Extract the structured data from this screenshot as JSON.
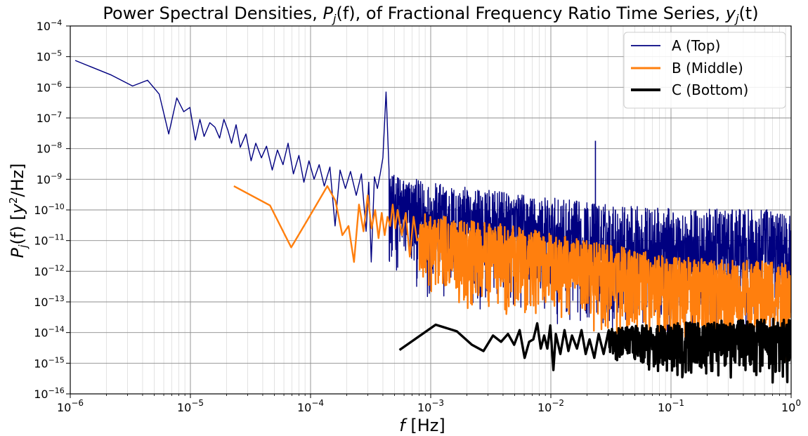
{
  "chart_data": {
    "type": "line",
    "title": "Power Spectral Densities, Pj(f), of Fractional Frequency Ratio Time Series, yj(t)",
    "title_parts": {
      "prefix": "Power Spectral Densities, ",
      "psd_symbol": "P",
      "psd_sub": "j",
      "psd_arg": "(f)",
      "middle": ", of Fractional Frequency Ratio Time Series, ",
      "ts_symbol": "y",
      "ts_sub": "j",
      "ts_arg": "(t)"
    },
    "xlabel": "f [Hz]",
    "xlabel_parts": {
      "symbol": "f",
      "unit": " [Hz]"
    },
    "ylabel": "Pj(f) [y2/Hz]",
    "ylabel_parts": {
      "symbol": "P",
      "sub": "j",
      "arg": "(f)",
      "unit_open": " [",
      "unit_var": "y",
      "unit_sup": "2",
      "unit_close": "/Hz]"
    },
    "xscale": "log",
    "yscale": "log",
    "xlim": [
      1e-06,
      1
    ],
    "ylim": [
      1e-16,
      0.0001
    ],
    "x_ticks": [
      {
        "base": "10",
        "exp": "−6"
      },
      {
        "base": "10",
        "exp": "−5"
      },
      {
        "base": "10",
        "exp": "−4"
      },
      {
        "base": "10",
        "exp": "−3"
      },
      {
        "base": "10",
        "exp": "−2"
      },
      {
        "base": "10",
        "exp": "−1"
      },
      {
        "base": "10",
        "exp": "0"
      }
    ],
    "y_ticks": [
      {
        "base": "10",
        "exp": "−16"
      },
      {
        "base": "10",
        "exp": "−15"
      },
      {
        "base": "10",
        "exp": "−14"
      },
      {
        "base": "10",
        "exp": "−13"
      },
      {
        "base": "10",
        "exp": "−12"
      },
      {
        "base": "10",
        "exp": "−11"
      },
      {
        "base": "10",
        "exp": "−10"
      },
      {
        "base": "10",
        "exp": "−9"
      },
      {
        "base": "10",
        "exp": "−8"
      },
      {
        "base": "10",
        "exp": "−7"
      },
      {
        "base": "10",
        "exp": "−6"
      },
      {
        "base": "10",
        "exp": "−5"
      },
      {
        "base": "10",
        "exp": "−4"
      }
    ],
    "grid": true,
    "legend_position": "top-right",
    "series": [
      {
        "name": "A (Top)",
        "color": "#000080",
        "line_width": "thin",
        "noisy_from_hz": 0.00045,
        "noise_band_upper": [
          [
            0.00045,
            1.5e-09
          ],
          [
            0.001,
            8e-10
          ],
          [
            0.003,
            4.5e-10
          ],
          [
            0.01,
            2.5e-10
          ],
          [
            0.03,
            1.6e-10
          ],
          [
            0.1,
            1.1e-10
          ],
          [
            1,
            1e-10
          ]
        ],
        "noise_band_lower": [
          [
            0.00045,
            1e-12
          ],
          [
            0.001,
            1e-13
          ],
          [
            0.003,
            5e-14
          ],
          [
            0.01,
            2e-14
          ],
          [
            0.03,
            8e-15
          ],
          [
            0.1,
            5e-15
          ],
          [
            1,
            5e-15
          ]
        ],
        "values": [
          [
            1.1e-06,
            7.5e-06
          ],
          [
            2.2e-06,
            2.5e-06
          ],
          [
            3.3e-06,
            1.1e-06
          ],
          [
            4.4e-06,
            1.7e-06
          ],
          [
            5.5e-06,
            6e-07
          ],
          [
            6.6e-06,
            3e-08
          ],
          [
            7.7e-06,
            4.5e-07
          ],
          [
            8.8e-06,
            1.6e-07
          ],
          [
            9.9e-06,
            2.2e-07
          ],
          [
            1.1e-05,
            1.9e-08
          ],
          [
            1.2e-05,
            9e-08
          ],
          [
            1.3e-05,
            2.5e-08
          ],
          [
            1.45e-05,
            7e-08
          ],
          [
            1.6e-05,
            5e-08
          ],
          [
            1.75e-05,
            2.2e-08
          ],
          [
            1.9e-05,
            9e-08
          ],
          [
            2.05e-05,
            4e-08
          ],
          [
            2.2e-05,
            1.5e-08
          ],
          [
            2.4e-05,
            6e-08
          ],
          [
            2.6e-05,
            1.1e-08
          ],
          [
            2.9e-05,
            3e-08
          ],
          [
            3.2e-05,
            4e-09
          ],
          [
            3.5e-05,
            1.5e-08
          ],
          [
            3.9e-05,
            5e-09
          ],
          [
            4.3e-05,
            1.2e-08
          ],
          [
            4.8e-05,
            2e-09
          ],
          [
            5.3e-05,
            9e-09
          ],
          [
            5.9e-05,
            3e-09
          ],
          [
            6.5e-05,
            1.5e-08
          ],
          [
            7.2e-05,
            1.5e-09
          ],
          [
            8e-05,
            6e-09
          ],
          [
            8.8e-05,
            8e-10
          ],
          [
            9.7e-05,
            4e-09
          ],
          [
            0.000107,
            1e-09
          ],
          [
            0.000118,
            3e-09
          ],
          [
            0.00013,
            6e-10
          ],
          [
            0.000145,
            2.5e-09
          ],
          [
            0.00016,
            3e-11
          ],
          [
            0.000176,
            2e-09
          ],
          [
            0.000195,
            5e-10
          ],
          [
            0.000215,
            1.8e-09
          ],
          [
            0.00024,
            3e-10
          ],
          [
            0.000265,
            1.5e-09
          ],
          [
            0.00029,
            2e-11
          ],
          [
            0.000305,
            8e-10
          ],
          [
            0.00032,
            2e-12
          ],
          [
            0.00034,
            1.2e-09
          ],
          [
            0.00036,
            5e-10
          ],
          [
            0.00038,
            1.5e-09
          ],
          [
            0.0004,
            5e-09
          ],
          [
            0.000415,
            1e-07
          ],
          [
            0.000425,
            7e-07
          ],
          [
            0.000432,
            1.5e-07
          ],
          [
            0.00044,
            2e-08
          ],
          [
            0.00045,
            2e-09
          ]
        ]
      },
      {
        "name": "B (Middle)",
        "color": "#ff7f0e",
        "line_width": "medium",
        "noisy_from_hz": 0.0008,
        "noise_band_upper": [
          [
            0.0008,
            8e-11
          ],
          [
            0.002,
            5e-11
          ],
          [
            0.005,
            3e-11
          ],
          [
            0.02,
            1e-11
          ],
          [
            0.1,
            3e-12
          ],
          [
            1,
            2e-12
          ]
        ],
        "noise_band_lower": [
          [
            0.0008,
            1e-13
          ],
          [
            0.002,
            5e-14
          ],
          [
            0.005,
            2e-14
          ],
          [
            0.02,
            8e-15
          ],
          [
            0.1,
            2e-15
          ],
          [
            1,
            1e-15
          ]
        ],
        "values": [
          [
            2.3e-05,
            6e-10
          ],
          [
            4.6e-05,
            1.4e-10
          ],
          [
            6.9e-05,
            6e-12
          ],
          [
            9.2e-05,
            4e-11
          ],
          [
            0.000138,
            6e-10
          ],
          [
            0.000161,
            2e-10
          ],
          [
            0.000184,
            1.5e-11
          ],
          [
            0.000207,
            3e-11
          ],
          [
            0.00023,
            2e-12
          ],
          [
            0.000253,
            1.5e-10
          ],
          [
            0.000276,
            2e-11
          ],
          [
            0.000299,
            3e-10
          ],
          [
            0.000322,
            2.5e-11
          ],
          [
            0.000345,
            1e-10
          ],
          [
            0.000368,
            1.2e-11
          ],
          [
            0.000391,
            8e-11
          ],
          [
            0.000414,
            1.5e-11
          ],
          [
            0.000437,
            6e-11
          ],
          [
            0.00046,
            3e-11
          ],
          [
            0.000483,
            1.5e-10
          ],
          [
            0.000506,
            2.5e-11
          ],
          [
            0.00053,
            1e-10
          ],
          [
            0.000575,
            1.5e-11
          ],
          [
            0.00062,
            8e-11
          ],
          [
            0.00067,
            3e-12
          ],
          [
            0.00072,
            6e-11
          ],
          [
            0.00077,
            1e-11
          ]
        ]
      },
      {
        "name": "C (Bottom)",
        "color": "#000000",
        "line_width": "thick",
        "noisy_from_hz": 0.03,
        "noise_band_upper": [
          [
            0.03,
            1.5e-14
          ],
          [
            0.1,
            2e-14
          ],
          [
            0.3,
            2.5e-14
          ],
          [
            1,
            3e-14
          ]
        ],
        "noise_band_lower": [
          [
            0.03,
            1e-15
          ],
          [
            0.1,
            3e-16
          ],
          [
            0.3,
            3e-16
          ],
          [
            1,
            2e-16
          ]
        ],
        "values": [
          [
            0.00055,
            2.7e-15
          ],
          [
            0.0011,
            1.8e-14
          ],
          [
            0.00165,
            1.1e-14
          ],
          [
            0.0022,
            4e-15
          ],
          [
            0.00275,
            2.5e-15
          ],
          [
            0.0033,
            8e-15
          ],
          [
            0.00385,
            5e-15
          ],
          [
            0.0044,
            9e-15
          ],
          [
            0.00495,
            4e-15
          ],
          [
            0.0055,
            1.2e-14
          ],
          [
            0.00605,
            1.5e-15
          ],
          [
            0.0066,
            5e-15
          ],
          [
            0.00715,
            6e-15
          ],
          [
            0.0077,
            2e-14
          ],
          [
            0.00825,
            3e-15
          ],
          [
            0.0088,
            8e-15
          ],
          [
            0.00935,
            3e-15
          ],
          [
            0.0099,
            1.7e-14
          ],
          [
            0.0105,
            6e-16
          ],
          [
            0.011,
            9e-15
          ],
          [
            0.012,
            2e-15
          ],
          [
            0.013,
            1.2e-14
          ],
          [
            0.014,
            2.5e-15
          ],
          [
            0.015,
            8e-15
          ],
          [
            0.0165,
            3e-15
          ],
          [
            0.018,
            1.2e-14
          ],
          [
            0.0195,
            2e-15
          ],
          [
            0.021,
            6e-15
          ],
          [
            0.023,
            1.5e-15
          ],
          [
            0.025,
            9e-15
          ],
          [
            0.0275,
            2e-15
          ],
          [
            0.03,
            1e-14
          ]
        ]
      }
    ],
    "spike": {
      "series": "A (Top)",
      "x": 0.0235,
      "y_peak": 1.8e-08,
      "y_base": 3e-11
    }
  }
}
